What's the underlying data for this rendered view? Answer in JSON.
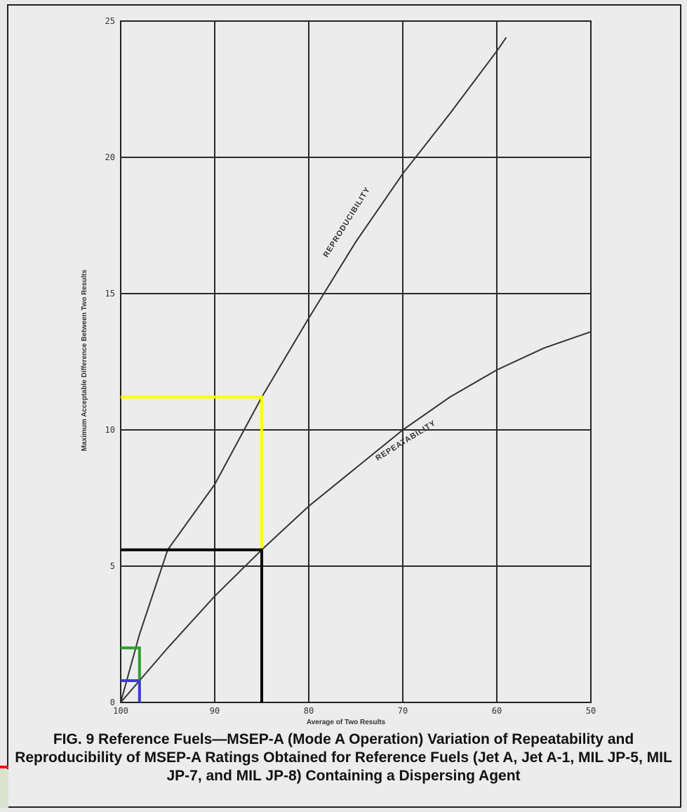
{
  "figure": {
    "caption": "FIG. 9 Reference Fuels—MSEP-A (Mode A Operation) Variation of Repeatability and Reproducibility of MSEP-A Ratings Obtained for Reference Fuels (Jet A, Jet A-1, MIL JP-5, MIL JP-7, and MIL JP-8) Containing a Dispersing Agent"
  },
  "chart_data": {
    "type": "line",
    "xlabel": "Average of Two Results",
    "ylabel": "Maximum Acceptable Difference Between Two Results",
    "xlim": [
      100,
      50
    ],
    "ylim": [
      0,
      25
    ],
    "x_ticks": [
      "100",
      "90",
      "80",
      "70",
      "60",
      "50"
    ],
    "y_ticks": [
      "0",
      "5",
      "10",
      "15",
      "20",
      "25"
    ],
    "grid": true,
    "series": [
      {
        "name": "REPRODUCIBILITY",
        "color": "#333333",
        "x": [
          100,
          98,
          95,
          90,
          85,
          80,
          75,
          70,
          65,
          60,
          59
        ],
        "y": [
          0,
          2.5,
          5.6,
          8.0,
          11.2,
          14.1,
          16.9,
          19.4,
          21.6,
          23.9,
          24.4
        ]
      },
      {
        "name": "REPEATABILITY",
        "color": "#333333",
        "x": [
          100,
          95,
          90,
          85,
          80,
          75,
          70,
          65,
          60,
          55,
          50
        ],
        "y": [
          0,
          2.0,
          3.9,
          5.6,
          7.2,
          8.6,
          10.0,
          11.2,
          12.2,
          13.0,
          13.6
        ]
      }
    ],
    "annotations": [
      {
        "color": "#ffff00",
        "x": [
          100,
          85,
          85
        ],
        "y": [
          11.2,
          11.2,
          5.6
        ]
      },
      {
        "color": "#000000",
        "x": [
          100,
          85,
          85
        ],
        "y": [
          5.6,
          5.6,
          0
        ]
      },
      {
        "color": "#2ca02c",
        "x": [
          100,
          98,
          98
        ],
        "y": [
          2.0,
          2.0,
          0.8
        ]
      },
      {
        "color": "#3b3bd4",
        "x": [
          100,
          98,
          98
        ],
        "y": [
          0.8,
          0.8,
          0
        ]
      }
    ]
  }
}
